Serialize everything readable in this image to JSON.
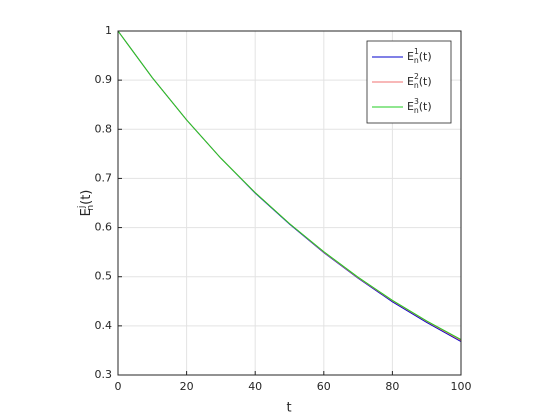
{
  "chart_data": {
    "type": "line",
    "xlabel": "t",
    "ylabel": "E_n^j(t)",
    "x": [
      0,
      10,
      20,
      30,
      40,
      50,
      60,
      70,
      80,
      90,
      100
    ],
    "series": [
      {
        "name": "E_n^1(t)",
        "color": "#0000cc",
        "values": [
          1,
          0.905,
          0.819,
          0.741,
          0.67,
          0.607,
          0.549,
          0.497,
          0.449,
          0.407,
          0.368
        ]
      },
      {
        "name": "E_n^2(t)",
        "color": "#f07070",
        "values": [
          1,
          0.905,
          0.819,
          0.741,
          0.671,
          0.608,
          0.55,
          0.498,
          0.451,
          0.409,
          0.37
        ]
      },
      {
        "name": "E_n^3(t)",
        "color": "#22cc22",
        "values": [
          1,
          0.905,
          0.819,
          0.741,
          0.671,
          0.608,
          0.551,
          0.499,
          0.452,
          0.41,
          0.372
        ]
      }
    ],
    "xlim": [
      0,
      100
    ],
    "xticks": [
      0,
      20,
      40,
      60,
      80,
      100
    ],
    "ylim": [
      0.3,
      1
    ],
    "yticks": [
      0.3,
      0.4,
      0.5,
      0.6,
      0.7,
      0.8,
      0.9,
      1
    ],
    "grid": true,
    "legend": "northeast"
  }
}
